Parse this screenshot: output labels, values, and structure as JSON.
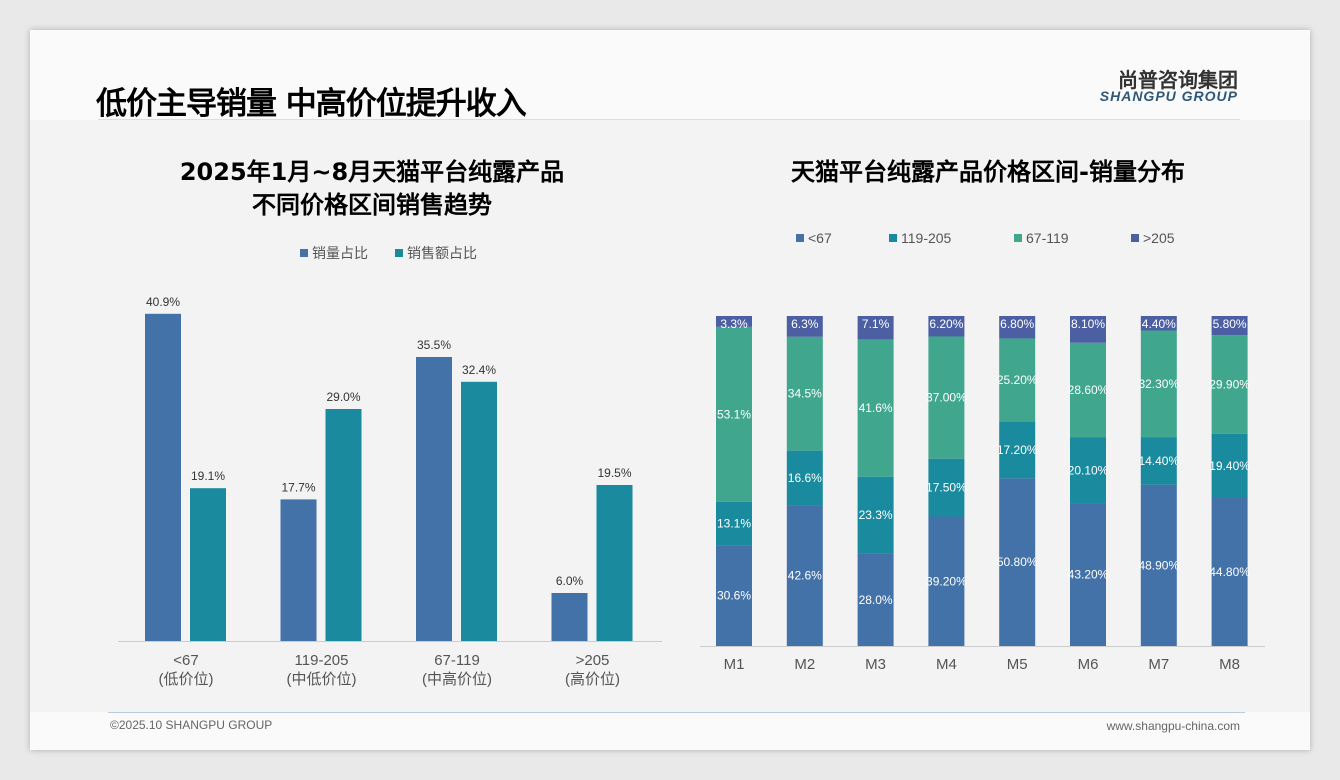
{
  "header": {
    "title": "低价主导销量 中高价位提升收入",
    "logo_cn": "尚普咨询集团",
    "logo_en": "SHANGPU GROUP"
  },
  "footer": {
    "copyright": "©2025.10 SHANGPU GROUP",
    "website": "www.shangpu-china.com"
  },
  "colors": {
    "blue": "#4272a8",
    "teal": "#1a8a9e",
    "green": "#40a68e",
    "indigo": "#4d5fa3"
  },
  "chart_data": [
    {
      "type": "bar",
      "title": [
        "2025年1月~8月天猫平台纯露产品",
        "不同价格区间销售趋势"
      ],
      "categories": [
        "<67",
        "119-205",
        "67-119",
        ">205"
      ],
      "category_sub": [
        "(低价位)",
        "(中低价位)",
        "(中高价位)",
        "(高价位)"
      ],
      "series": [
        {
          "name": "销量占比",
          "values": [
            40.9,
            17.7,
            35.5,
            6.0
          ],
          "labels": [
            "40.9%",
            "17.7%",
            "35.5%",
            "6.0%"
          ]
        },
        {
          "name": "销售额占比",
          "values": [
            19.1,
            29.0,
            32.4,
            19.5
          ],
          "labels": [
            "19.1%",
            "29.0%",
            "32.4%",
            "19.5%"
          ]
        }
      ],
      "legend": "top",
      "ylim": [
        0,
        45
      ]
    },
    {
      "type": "bar",
      "stacked": true,
      "title": "天猫平台纯露产品价格区间-销量分布",
      "categories": [
        "M1",
        "M2",
        "M3",
        "M4",
        "M5",
        "M6",
        "M7",
        "M8"
      ],
      "series": [
        {
          "name": "<67",
          "values": [
            30.6,
            42.6,
            28.0,
            39.2,
            50.8,
            43.2,
            48.9,
            44.8
          ],
          "labels": [
            "30.6%",
            "42.6%",
            "28.0%",
            "39.20%",
            "50.80%",
            "43.20%",
            "48.90%",
            "44.80%"
          ]
        },
        {
          "name": "119-205",
          "values": [
            13.1,
            16.6,
            23.3,
            17.5,
            17.2,
            20.1,
            14.4,
            19.4
          ],
          "labels": [
            "13.1%",
            "16.6%",
            "23.3%",
            "17.50%",
            "17.20%",
            "20.10%",
            "14.40%",
            "19.40%"
          ]
        },
        {
          "name": "67-119",
          "values": [
            53.1,
            34.5,
            41.6,
            37.0,
            25.2,
            28.6,
            32.3,
            29.9
          ],
          "labels": [
            "53.1%",
            "34.5%",
            "41.6%",
            "37.00%",
            "25.20%",
            "28.60%",
            "32.30%",
            "29.90%"
          ]
        },
        {
          "name": ">205",
          "values": [
            3.3,
            6.3,
            7.1,
            6.2,
            6.8,
            8.1,
            4.4,
            5.8
          ],
          "labels": [
            "3.3%",
            "6.3%",
            "7.1%",
            "6.20%",
            "6.80%",
            "8.10%",
            "4.40%",
            "5.80%"
          ]
        }
      ],
      "legend": "top",
      "ylim": [
        0,
        100
      ]
    }
  ]
}
